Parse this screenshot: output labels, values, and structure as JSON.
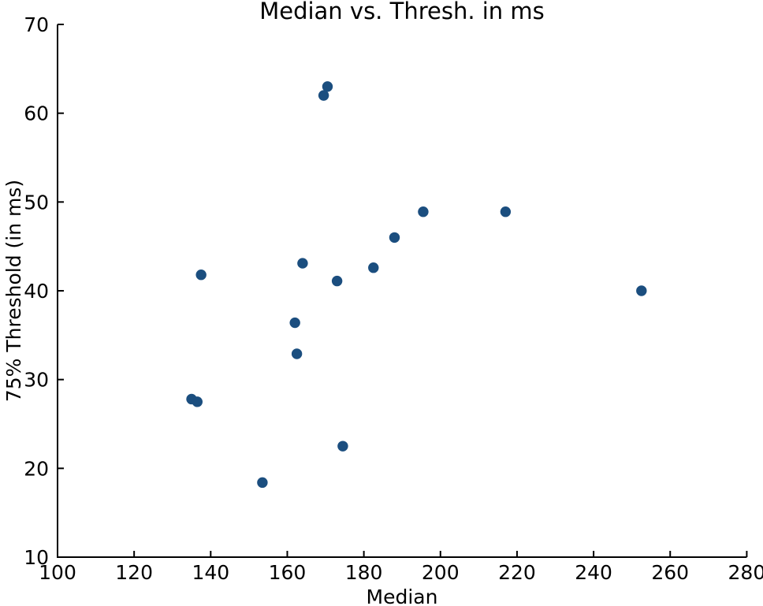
{
  "chart_data": {
    "type": "scatter",
    "title": "Median vs. Thresh. in ms",
    "xlabel": "Median",
    "ylabel": "75% Threshold (in ms)",
    "xlim": [
      100,
      280
    ],
    "ylim": [
      10,
      70
    ],
    "xticks": [
      100,
      120,
      140,
      160,
      180,
      200,
      220,
      240,
      260,
      280
    ],
    "yticks": [
      10,
      20,
      30,
      40,
      50,
      60,
      70
    ],
    "grid": false,
    "legend": "none",
    "marker_color": "#1b4e7f",
    "axis_color": "#000000",
    "points": [
      {
        "x": 170.5,
        "y": 63.0
      },
      {
        "x": 169.5,
        "y": 62.0
      },
      {
        "x": 195.5,
        "y": 48.9
      },
      {
        "x": 217.0,
        "y": 48.9
      },
      {
        "x": 188.0,
        "y": 46.0
      },
      {
        "x": 164.0,
        "y": 43.1
      },
      {
        "x": 182.5,
        "y": 42.6
      },
      {
        "x": 137.5,
        "y": 41.8
      },
      {
        "x": 173.0,
        "y": 41.1
      },
      {
        "x": 252.5,
        "y": 40.0
      },
      {
        "x": 162.0,
        "y": 36.4
      },
      {
        "x": 162.5,
        "y": 32.9
      },
      {
        "x": 135.0,
        "y": 27.8
      },
      {
        "x": 136.5,
        "y": 27.5
      },
      {
        "x": 174.5,
        "y": 22.5
      },
      {
        "x": 153.5,
        "y": 18.4
      }
    ]
  }
}
